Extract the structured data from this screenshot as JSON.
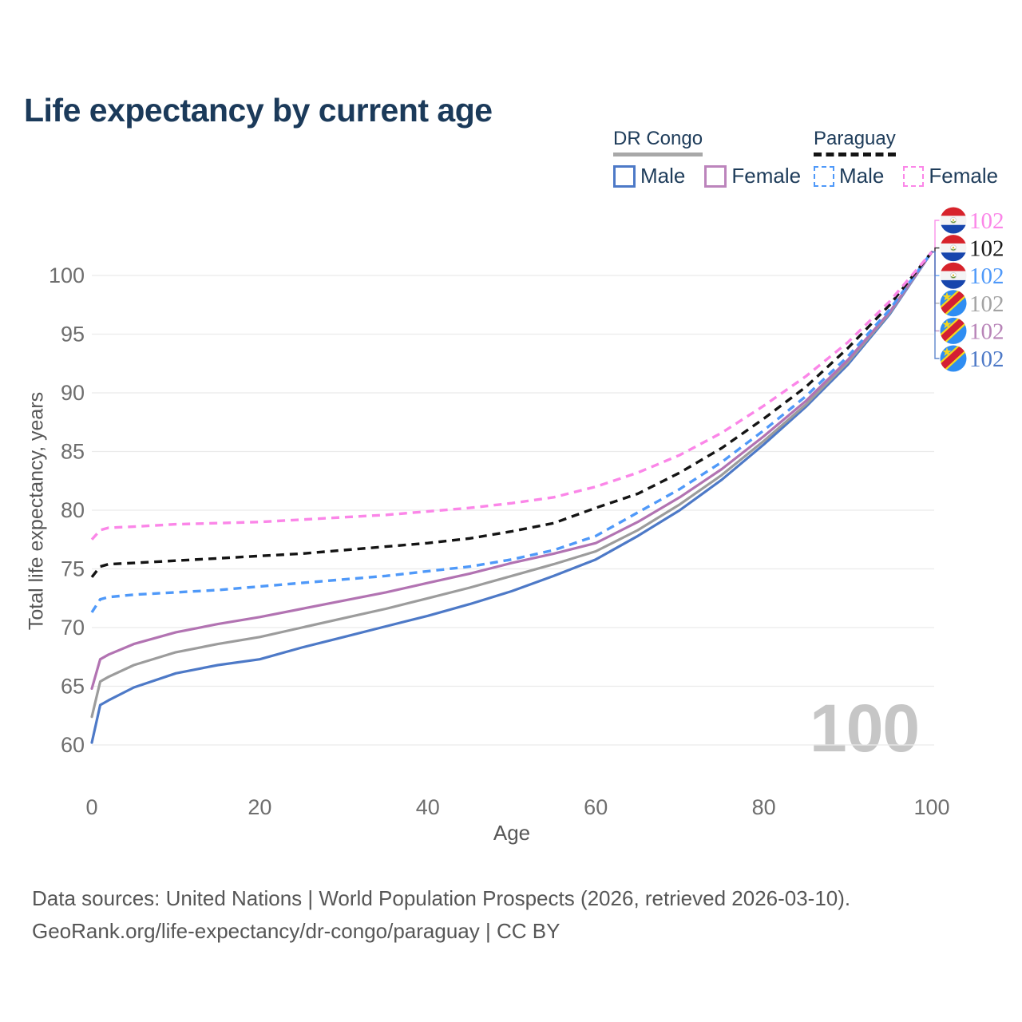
{
  "title": "Life expectancy by current age",
  "watermark": "100",
  "legend": {
    "groups": [
      {
        "country": "DR Congo",
        "line_style": "solid",
        "underline_color": "#a8a8a8",
        "items": [
          {
            "label": "Male",
            "color": "#4d79c7",
            "dashed": false
          },
          {
            "label": "Female",
            "color": "#bc84bc",
            "dashed": false
          }
        ]
      },
      {
        "country": "Paraguay",
        "line_style": "dashed",
        "underline_color": "#141414",
        "items": [
          {
            "label": "Male",
            "color": "#4f99f9",
            "dashed": true
          },
          {
            "label": "Female",
            "color": "#fb86e8",
            "dashed": true
          }
        ]
      }
    ]
  },
  "axes": {
    "x": {
      "label": "Age",
      "ticks": [
        0,
        20,
        40,
        60,
        80,
        100
      ],
      "range": [
        0,
        100
      ]
    },
    "y": {
      "label": "Total life expectancy, years",
      "ticks": [
        60,
        65,
        70,
        75,
        80,
        85,
        90,
        95,
        100
      ],
      "range": [
        58.5,
        103
      ]
    }
  },
  "end_labels": [
    {
      "flag": "paraguay",
      "series": "Paraguay Female",
      "value": "102",
      "color": "#fb86e8"
    },
    {
      "flag": "paraguay",
      "series": "Paraguay (both sexes)",
      "value": "102",
      "color": "#1a1a1a"
    },
    {
      "flag": "paraguay",
      "series": "Paraguay Male",
      "value": "102",
      "color": "#4f99f9"
    },
    {
      "flag": "dr-congo",
      "series": "DR Congo (both sexes)",
      "value": "102",
      "color": "#a3a3a3"
    },
    {
      "flag": "dr-congo",
      "series": "DR Congo Female",
      "value": "102",
      "color": "#b884b8"
    },
    {
      "flag": "dr-congo",
      "series": "DR Congo Male",
      "value": "102",
      "color": "#4d79c7"
    }
  ],
  "footer": {
    "line1": "Data sources: United Nations | World Population Prospects (2026, retrieved 2026-03-10).",
    "line2": "GeoRank.org/life-expectancy/dr-congo/paraguay | CC BY"
  },
  "chart_data": {
    "type": "line",
    "title": "Life expectancy by current age",
    "xlabel": "Age",
    "ylabel": "Total life expectancy, years",
    "xlim": [
      0,
      100
    ],
    "ylim": [
      58.5,
      103
    ],
    "grid": "horizontal",
    "legend_position": "top-right",
    "end_value_label": 102,
    "x": [
      0,
      1,
      2,
      5,
      10,
      15,
      20,
      25,
      30,
      35,
      40,
      45,
      50,
      55,
      60,
      65,
      70,
      75,
      80,
      85,
      90,
      95,
      100
    ],
    "series": [
      {
        "name": "DR Congo Male",
        "country": "DR Congo",
        "group": "Male",
        "style": "solid",
        "color": "#4d79c7",
        "values": [
          60.2,
          63.4,
          63.8,
          64.9,
          66.1,
          66.8,
          67.3,
          68.3,
          69.2,
          70.1,
          71.0,
          72.0,
          73.1,
          74.4,
          75.8,
          77.8,
          80.0,
          82.6,
          85.6,
          88.8,
          92.4,
          96.7,
          102
        ]
      },
      {
        "name": "DR Congo (both sexes)",
        "country": "DR Congo",
        "group": "Both sexes",
        "style": "solid",
        "color": "#9c9c9c",
        "values": [
          62.4,
          65.4,
          65.8,
          66.8,
          67.9,
          68.6,
          69.2,
          70.0,
          70.8,
          71.6,
          72.5,
          73.4,
          74.4,
          75.4,
          76.5,
          78.3,
          80.5,
          83.0,
          85.9,
          89.0,
          92.6,
          96.8,
          102
        ]
      },
      {
        "name": "DR Congo Female",
        "country": "DR Congo",
        "group": "Female",
        "style": "solid",
        "color": "#b273b2",
        "values": [
          64.8,
          67.3,
          67.7,
          68.6,
          69.6,
          70.3,
          70.9,
          71.6,
          72.3,
          73.0,
          73.8,
          74.6,
          75.5,
          76.3,
          77.2,
          79.0,
          81.1,
          83.5,
          86.3,
          89.3,
          92.8,
          96.9,
          102
        ]
      },
      {
        "name": "Paraguay Male",
        "country": "Paraguay",
        "group": "Male",
        "style": "dashed",
        "color": "#4f99f9",
        "values": [
          71.3,
          72.4,
          72.6,
          72.8,
          73.0,
          73.2,
          73.5,
          73.8,
          74.1,
          74.4,
          74.8,
          75.2,
          75.8,
          76.6,
          77.8,
          79.8,
          81.8,
          84.1,
          86.8,
          89.7,
          93.1,
          97.1,
          102
        ]
      },
      {
        "name": "Paraguay (both sexes)",
        "country": "Paraguay",
        "group": "Both sexes",
        "style": "dashed",
        "color": "#141414",
        "values": [
          74.3,
          75.2,
          75.4,
          75.5,
          75.7,
          75.9,
          76.1,
          76.3,
          76.6,
          76.9,
          77.2,
          77.6,
          78.2,
          78.9,
          80.2,
          81.4,
          83.2,
          85.3,
          87.8,
          90.5,
          93.8,
          97.5,
          102
        ]
      },
      {
        "name": "Paraguay Female",
        "country": "Paraguay",
        "group": "Female",
        "style": "dashed",
        "color": "#fb86e8",
        "values": [
          77.5,
          78.3,
          78.5,
          78.6,
          78.8,
          78.9,
          79.0,
          79.2,
          79.4,
          79.6,
          79.9,
          80.2,
          80.6,
          81.1,
          82.0,
          83.2,
          84.7,
          86.6,
          88.9,
          91.4,
          94.3,
          97.8,
          102
        ]
      }
    ]
  }
}
